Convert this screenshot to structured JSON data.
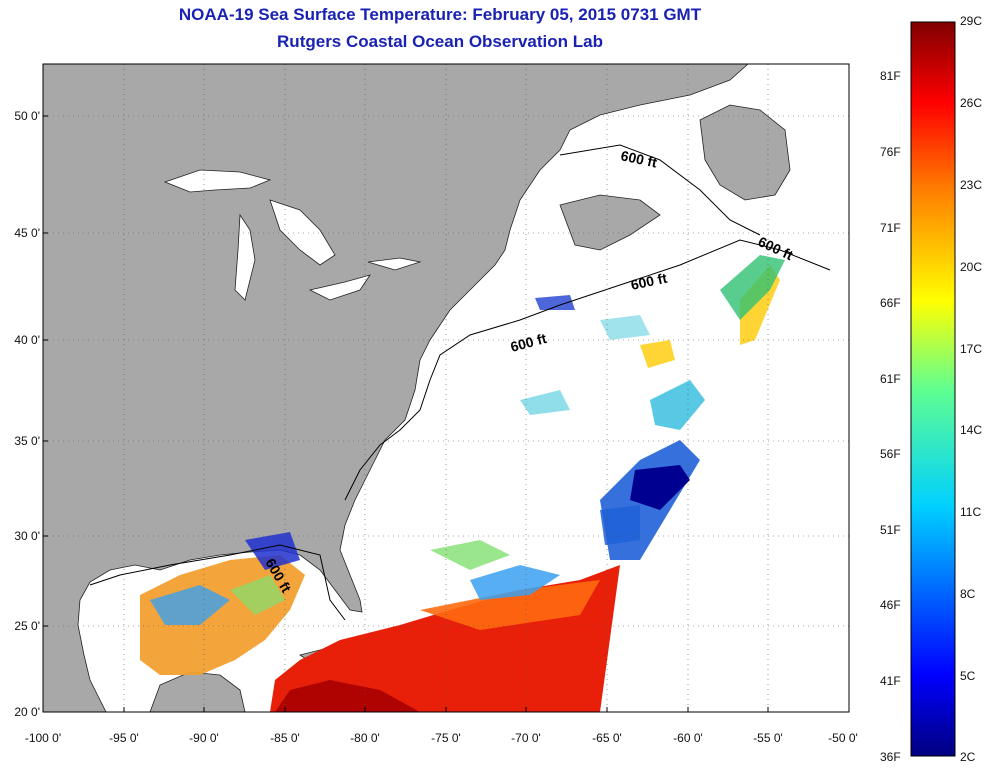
{
  "title": "NOAA-19 Sea Surface Temperature:  February 05, 2015 0731 GMT",
  "subtitle": "Rutgers Coastal Ocean Observation Lab",
  "map": {
    "y_axis_labels": [
      "50 0'",
      "45 0'",
      "40 0'",
      "35 0'",
      "30 0'",
      "25 0'",
      "20 0'"
    ],
    "x_axis_labels": [
      "-100 0'",
      "-95 0'",
      "-90 0'",
      "-85 0'",
      "-80 0'",
      "-75 0'",
      "-70 0'",
      "-65 0'",
      "-60 0'",
      "-55 0'",
      "-50 0'"
    ],
    "contour_label": "600 ft",
    "land_color": "#a8a8a8",
    "ocean_no_data_color": "#ffffff",
    "grid": "dotted"
  },
  "colorbar": {
    "celsius_labels": [
      "29C",
      "26C",
      "23C",
      "20C",
      "17C",
      "14C",
      "11C",
      "8C",
      "5C",
      "2C"
    ],
    "fahrenheit_labels": [
      "81F",
      "76F",
      "71F",
      "66F",
      "61F",
      "56F",
      "51F",
      "46F",
      "41F",
      "36F"
    ],
    "colormap": "jet"
  }
}
